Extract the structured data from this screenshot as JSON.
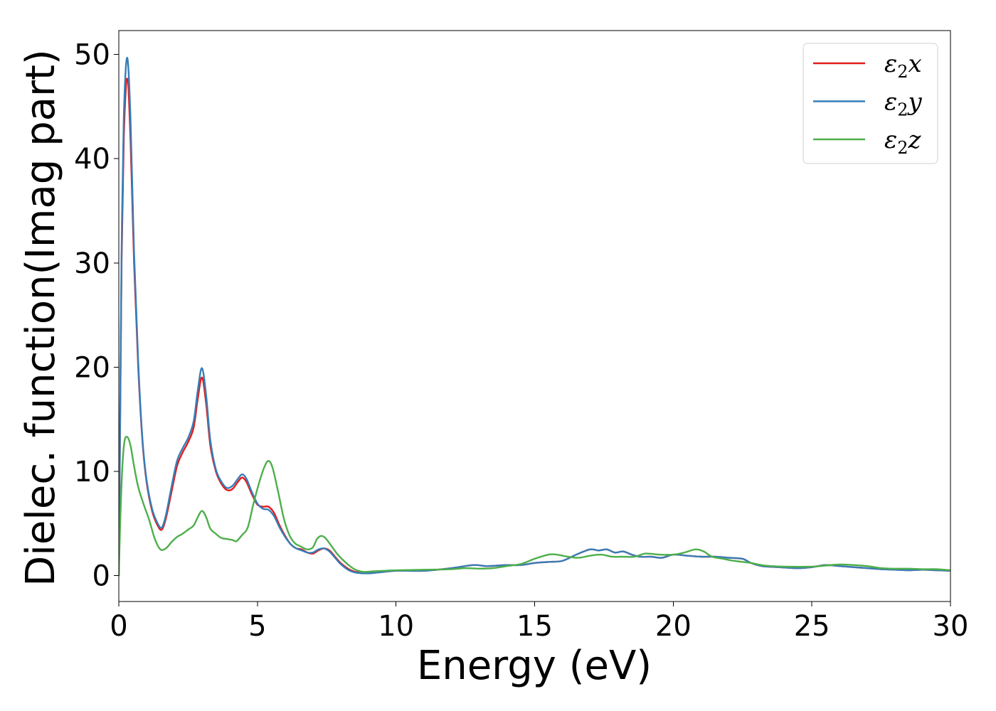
{
  "chart_data": {
    "type": "line",
    "title": "",
    "xlabel": "Energy (eV)",
    "ylabel": "Dielec. function(Imag part)",
    "xlim": [
      0,
      30
    ],
    "ylim": [
      -2.5,
      52.3
    ],
    "x_ticks": [
      0,
      5,
      10,
      15,
      20,
      25,
      30
    ],
    "y_ticks": [
      0,
      10,
      20,
      30,
      40,
      50
    ],
    "legend_position": "top-right",
    "grid": false,
    "series": [
      {
        "name": "ε2x",
        "legend_main": "ε",
        "legend_sub": "2",
        "legend_suffix": "x",
        "color": "#e41a1c",
        "points": [
          [
            0.0,
            0.0
          ],
          [
            0.05,
            15.0
          ],
          [
            0.1,
            30.0
          ],
          [
            0.18,
            42.0
          ],
          [
            0.3,
            47.7
          ],
          [
            0.42,
            42.0
          ],
          [
            0.55,
            30.0
          ],
          [
            0.7,
            20.0
          ],
          [
            0.85,
            13.0
          ],
          [
            1.0,
            9.0
          ],
          [
            1.2,
            6.2
          ],
          [
            1.4,
            4.8
          ],
          [
            1.55,
            4.4
          ],
          [
            1.7,
            5.5
          ],
          [
            1.9,
            8.0
          ],
          [
            2.1,
            10.5
          ],
          [
            2.3,
            11.8
          ],
          [
            2.5,
            12.8
          ],
          [
            2.7,
            14.2
          ],
          [
            2.85,
            17.0
          ],
          [
            3.0,
            19.0
          ],
          [
            3.15,
            16.5
          ],
          [
            3.3,
            12.5
          ],
          [
            3.5,
            10.0
          ],
          [
            3.7,
            8.8
          ],
          [
            3.9,
            8.2
          ],
          [
            4.1,
            8.3
          ],
          [
            4.3,
            9.0
          ],
          [
            4.45,
            9.4
          ],
          [
            4.6,
            9.0
          ],
          [
            4.8,
            7.8
          ],
          [
            5.0,
            6.8
          ],
          [
            5.2,
            6.6
          ],
          [
            5.4,
            6.6
          ],
          [
            5.6,
            6.0
          ],
          [
            5.8,
            4.8
          ],
          [
            6.0,
            3.8
          ],
          [
            6.2,
            3.0
          ],
          [
            6.4,
            2.6
          ],
          [
            6.6,
            2.5
          ],
          [
            6.8,
            2.2
          ],
          [
            7.0,
            2.1
          ],
          [
            7.2,
            2.4
          ],
          [
            7.4,
            2.6
          ],
          [
            7.6,
            2.4
          ],
          [
            7.8,
            1.8
          ],
          [
            8.0,
            1.2
          ],
          [
            8.3,
            0.6
          ],
          [
            8.6,
            0.3
          ],
          [
            9.0,
            0.25
          ],
          [
            9.4,
            0.3
          ],
          [
            10.0,
            0.45
          ],
          [
            11.0,
            0.45
          ],
          [
            12.0,
            0.7
          ],
          [
            12.8,
            1.0
          ],
          [
            13.3,
            0.9
          ],
          [
            14.0,
            1.0
          ],
          [
            14.5,
            1.0
          ],
          [
            15.0,
            1.2
          ],
          [
            15.5,
            1.3
          ],
          [
            16.0,
            1.4
          ],
          [
            16.5,
            2.0
          ],
          [
            17.0,
            2.5
          ],
          [
            17.3,
            2.4
          ],
          [
            17.6,
            2.5
          ],
          [
            17.9,
            2.2
          ],
          [
            18.2,
            2.3
          ],
          [
            18.5,
            2.0
          ],
          [
            18.8,
            1.8
          ],
          [
            19.2,
            1.8
          ],
          [
            19.6,
            1.7
          ],
          [
            20.0,
            2.0
          ],
          [
            20.5,
            1.9
          ],
          [
            21.0,
            1.8
          ],
          [
            21.5,
            1.8
          ],
          [
            22.0,
            1.7
          ],
          [
            22.5,
            1.6
          ],
          [
            22.8,
            1.2
          ],
          [
            23.2,
            0.9
          ],
          [
            23.8,
            0.8
          ],
          [
            24.5,
            0.7
          ],
          [
            25.0,
            0.8
          ],
          [
            25.5,
            1.0
          ],
          [
            26.0,
            0.9
          ],
          [
            26.5,
            0.8
          ],
          [
            27.0,
            0.7
          ],
          [
            27.5,
            0.6
          ],
          [
            28.0,
            0.55
          ],
          [
            28.5,
            0.5
          ],
          [
            29.0,
            0.55
          ],
          [
            29.5,
            0.5
          ],
          [
            30.0,
            0.45
          ]
        ]
      },
      {
        "name": "ε2y",
        "legend_main": "ε",
        "legend_sub": "2",
        "legend_suffix": "y",
        "color": "#377eb8",
        "points": [
          [
            0.0,
            0.0
          ],
          [
            0.05,
            16.0
          ],
          [
            0.1,
            31.0
          ],
          [
            0.18,
            44.0
          ],
          [
            0.3,
            49.7
          ],
          [
            0.42,
            44.0
          ],
          [
            0.55,
            31.0
          ],
          [
            0.7,
            20.5
          ],
          [
            0.85,
            13.2
          ],
          [
            1.0,
            9.2
          ],
          [
            1.2,
            6.4
          ],
          [
            1.4,
            5.0
          ],
          [
            1.55,
            4.6
          ],
          [
            1.7,
            5.8
          ],
          [
            1.9,
            8.5
          ],
          [
            2.1,
            11.0
          ],
          [
            2.3,
            12.2
          ],
          [
            2.5,
            13.2
          ],
          [
            2.7,
            14.8
          ],
          [
            2.85,
            17.8
          ],
          [
            3.0,
            19.9
          ],
          [
            3.15,
            17.3
          ],
          [
            3.3,
            13.0
          ],
          [
            3.5,
            10.2
          ],
          [
            3.7,
            9.0
          ],
          [
            3.9,
            8.4
          ],
          [
            4.1,
            8.6
          ],
          [
            4.3,
            9.3
          ],
          [
            4.45,
            9.7
          ],
          [
            4.6,
            9.3
          ],
          [
            4.8,
            8.0
          ],
          [
            5.0,
            6.9
          ],
          [
            5.2,
            6.4
          ],
          [
            5.4,
            6.3
          ],
          [
            5.6,
            5.7
          ],
          [
            5.8,
            4.6
          ],
          [
            6.0,
            3.7
          ],
          [
            6.2,
            3.0
          ],
          [
            6.4,
            2.6
          ],
          [
            6.6,
            2.4
          ],
          [
            6.8,
            2.2
          ],
          [
            7.0,
            2.2
          ],
          [
            7.2,
            2.5
          ],
          [
            7.4,
            2.6
          ],
          [
            7.6,
            2.3
          ],
          [
            7.8,
            1.7
          ],
          [
            8.0,
            1.1
          ],
          [
            8.3,
            0.5
          ],
          [
            8.6,
            0.25
          ],
          [
            9.0,
            0.2
          ],
          [
            9.4,
            0.3
          ],
          [
            10.0,
            0.45
          ],
          [
            11.0,
            0.45
          ],
          [
            12.0,
            0.7
          ],
          [
            12.8,
            1.0
          ],
          [
            13.3,
            0.9
          ],
          [
            14.0,
            1.0
          ],
          [
            14.5,
            1.0
          ],
          [
            15.0,
            1.2
          ],
          [
            15.5,
            1.3
          ],
          [
            16.0,
            1.4
          ],
          [
            16.5,
            2.0
          ],
          [
            17.0,
            2.5
          ],
          [
            17.3,
            2.4
          ],
          [
            17.6,
            2.5
          ],
          [
            17.9,
            2.2
          ],
          [
            18.2,
            2.3
          ],
          [
            18.5,
            2.0
          ],
          [
            18.8,
            1.8
          ],
          [
            19.2,
            1.8
          ],
          [
            19.6,
            1.7
          ],
          [
            20.0,
            2.0
          ],
          [
            20.5,
            1.9
          ],
          [
            21.0,
            1.8
          ],
          [
            21.5,
            1.8
          ],
          [
            22.0,
            1.7
          ],
          [
            22.5,
            1.6
          ],
          [
            22.8,
            1.2
          ],
          [
            23.2,
            0.9
          ],
          [
            23.8,
            0.8
          ],
          [
            24.5,
            0.7
          ],
          [
            25.0,
            0.8
          ],
          [
            25.5,
            1.0
          ],
          [
            26.0,
            0.9
          ],
          [
            26.5,
            0.8
          ],
          [
            27.0,
            0.7
          ],
          [
            27.5,
            0.6
          ],
          [
            28.0,
            0.55
          ],
          [
            28.5,
            0.5
          ],
          [
            29.0,
            0.55
          ],
          [
            29.5,
            0.5
          ],
          [
            30.0,
            0.45
          ]
        ]
      },
      {
        "name": "ε2z",
        "legend_main": "ε",
        "legend_sub": "2",
        "legend_suffix": "z",
        "color": "#4daf4a",
        "points": [
          [
            0.0,
            0.0
          ],
          [
            0.05,
            5.0
          ],
          [
            0.12,
            10.0
          ],
          [
            0.2,
            12.8
          ],
          [
            0.3,
            13.3
          ],
          [
            0.42,
            12.5
          ],
          [
            0.55,
            10.5
          ],
          [
            0.7,
            8.5
          ],
          [
            0.9,
            6.8
          ],
          [
            1.1,
            5.3
          ],
          [
            1.3,
            3.5
          ],
          [
            1.5,
            2.5
          ],
          [
            1.7,
            2.6
          ],
          [
            1.9,
            3.2
          ],
          [
            2.1,
            3.7
          ],
          [
            2.3,
            4.0
          ],
          [
            2.5,
            4.4
          ],
          [
            2.7,
            4.8
          ],
          [
            2.85,
            5.6
          ],
          [
            3.0,
            6.2
          ],
          [
            3.15,
            5.6
          ],
          [
            3.3,
            4.5
          ],
          [
            3.5,
            4.0
          ],
          [
            3.7,
            3.6
          ],
          [
            3.9,
            3.5
          ],
          [
            4.1,
            3.4
          ],
          [
            4.25,
            3.3
          ],
          [
            4.45,
            3.9
          ],
          [
            4.65,
            4.6
          ],
          [
            4.85,
            6.8
          ],
          [
            5.05,
            8.8
          ],
          [
            5.25,
            10.4
          ],
          [
            5.4,
            11.0
          ],
          [
            5.55,
            10.3
          ],
          [
            5.75,
            8.0
          ],
          [
            5.95,
            5.5
          ],
          [
            6.15,
            3.9
          ],
          [
            6.35,
            3.1
          ],
          [
            6.55,
            2.8
          ],
          [
            6.8,
            2.5
          ],
          [
            7.0,
            2.7
          ],
          [
            7.15,
            3.5
          ],
          [
            7.3,
            3.8
          ],
          [
            7.45,
            3.6
          ],
          [
            7.65,
            2.9
          ],
          [
            7.9,
            2.0
          ],
          [
            8.2,
            1.2
          ],
          [
            8.5,
            0.6
          ],
          [
            8.8,
            0.35
          ],
          [
            9.2,
            0.4
          ],
          [
            10.0,
            0.5
          ],
          [
            11.0,
            0.55
          ],
          [
            12.0,
            0.6
          ],
          [
            12.5,
            0.7
          ],
          [
            13.0,
            0.65
          ],
          [
            13.5,
            0.7
          ],
          [
            14.0,
            0.9
          ],
          [
            14.5,
            1.1
          ],
          [
            15.0,
            1.6
          ],
          [
            15.5,
            2.0
          ],
          [
            15.8,
            2.0
          ],
          [
            16.2,
            1.8
          ],
          [
            16.6,
            1.7
          ],
          [
            17.0,
            1.9
          ],
          [
            17.4,
            2.0
          ],
          [
            17.8,
            1.8
          ],
          [
            18.2,
            1.8
          ],
          [
            18.6,
            1.8
          ],
          [
            19.0,
            2.1
          ],
          [
            19.5,
            2.0
          ],
          [
            20.0,
            2.0
          ],
          [
            20.4,
            2.2
          ],
          [
            20.8,
            2.5
          ],
          [
            21.1,
            2.3
          ],
          [
            21.4,
            1.8
          ],
          [
            21.8,
            1.6
          ],
          [
            22.2,
            1.4
          ],
          [
            22.8,
            1.2
          ],
          [
            23.3,
            0.95
          ],
          [
            24.0,
            0.85
          ],
          [
            25.0,
            0.85
          ],
          [
            25.5,
            0.95
          ],
          [
            26.0,
            1.05
          ],
          [
            26.5,
            1.0
          ],
          [
            27.0,
            0.9
          ],
          [
            27.5,
            0.7
          ],
          [
            28.0,
            0.65
          ],
          [
            28.5,
            0.65
          ],
          [
            29.0,
            0.6
          ],
          [
            29.5,
            0.6
          ],
          [
            30.0,
            0.5
          ]
        ]
      }
    ]
  }
}
